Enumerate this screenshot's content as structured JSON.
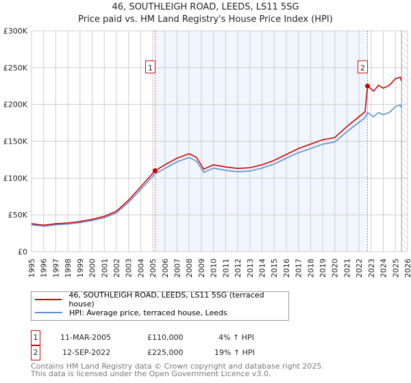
{
  "title": "46, SOUTHLEIGH ROAD, LEEDS, LS11 5SG",
  "subtitle": "Price paid vs. HM Land Registry's House Price Index (HPI)",
  "chart_data": {
    "type": "line",
    "xlim": [
      1995,
      2026
    ],
    "ylim": [
      0,
      300000
    ],
    "x_ticks": [
      "1995",
      "1996",
      "1997",
      "1998",
      "1999",
      "2000",
      "2001",
      "2002",
      "2003",
      "2004",
      "2005",
      "2006",
      "2007",
      "2008",
      "2009",
      "2010",
      "2011",
      "2012",
      "2013",
      "2014",
      "2015",
      "2016",
      "2017",
      "2018",
      "2019",
      "2020",
      "2021",
      "2022",
      "2023",
      "2024",
      "2025",
      "2026"
    ],
    "y_ticks": [
      {
        "v": 0,
        "label": "£0"
      },
      {
        "v": 50000,
        "label": "£50K"
      },
      {
        "v": 100000,
        "label": "£100K"
      },
      {
        "v": 150000,
        "label": "£150K"
      },
      {
        "v": 200000,
        "label": "£200K"
      },
      {
        "v": 250000,
        "label": "£250K"
      },
      {
        "v": 300000,
        "label": "£300K"
      }
    ],
    "forecast_from": 2025.5,
    "series": [
      {
        "name": "46, SOUTHLEIGH ROAD, LEEDS, LS11 5SG (terraced house)",
        "color": "#cc0000",
        "x": [
          1995,
          1996,
          1997,
          1998,
          1999,
          2000,
          2001,
          2002,
          2003,
          2004,
          2005.19,
          2006,
          2007,
          2008,
          2008.6,
          2009.2,
          2010,
          2011,
          2012,
          2013,
          2014,
          2015,
          2016,
          2017,
          2018,
          2019,
          2020,
          2021,
          2022.5,
          2022.7,
          2023.2,
          2023.6,
          2024,
          2024.5,
          2025,
          2025.4,
          2025.5
        ],
        "y": [
          38000,
          36000,
          38000,
          39000,
          41000,
          44000,
          48000,
          55000,
          70000,
          88000,
          110000,
          118000,
          127000,
          133000,
          128000,
          112000,
          118000,
          115000,
          113000,
          114000,
          118000,
          124000,
          132000,
          140000,
          146000,
          152000,
          155000,
          170000,
          190000,
          225000,
          218000,
          226000,
          222000,
          226000,
          235000,
          237000,
          232000
        ]
      },
      {
        "name": "HPI: Average price, terraced house, Leeds",
        "color": "#5b8fd4",
        "x": [
          1995,
          1996,
          1997,
          1998,
          1999,
          2000,
          2001,
          2002,
          2003,
          2004,
          2005.19,
          2006,
          2007,
          2008,
          2008.6,
          2009.2,
          2010,
          2011,
          2012,
          2013,
          2014,
          2015,
          2016,
          2017,
          2018,
          2019,
          2020,
          2021,
          2022.5,
          2022.7,
          2023.2,
          2023.6,
          2024,
          2024.5,
          2025,
          2025.4,
          2025.5
        ],
        "y": [
          36500,
          34600,
          36500,
          37500,
          39400,
          42300,
          46000,
          52800,
          67000,
          84500,
          105800,
          113000,
          122000,
          128000,
          123000,
          107700,
          113500,
          110500,
          108600,
          109500,
          113500,
          119000,
          127000,
          134500,
          140000,
          146000,
          149000,
          163000,
          182000,
          189000,
          183000,
          189000,
          186000,
          189000,
          197000,
          199000,
          195000
        ]
      }
    ],
    "sales": [
      {
        "label": "1",
        "x": 2005.19,
        "date": "11-MAR-2005",
        "price": "£110,000",
        "value": 110000,
        "hpi": "4% ↑ HPI"
      },
      {
        "label": "2",
        "x": 2022.7,
        "date": "12-SEP-2022",
        "price": "£225,000",
        "value": 225000,
        "hpi": "19% ↑ HPI"
      }
    ]
  },
  "footer": [
    "Contains HM Land Registry data © Crown copyright and database right 2025.",
    "This data is licensed under the Open Government Licence v3.0."
  ]
}
